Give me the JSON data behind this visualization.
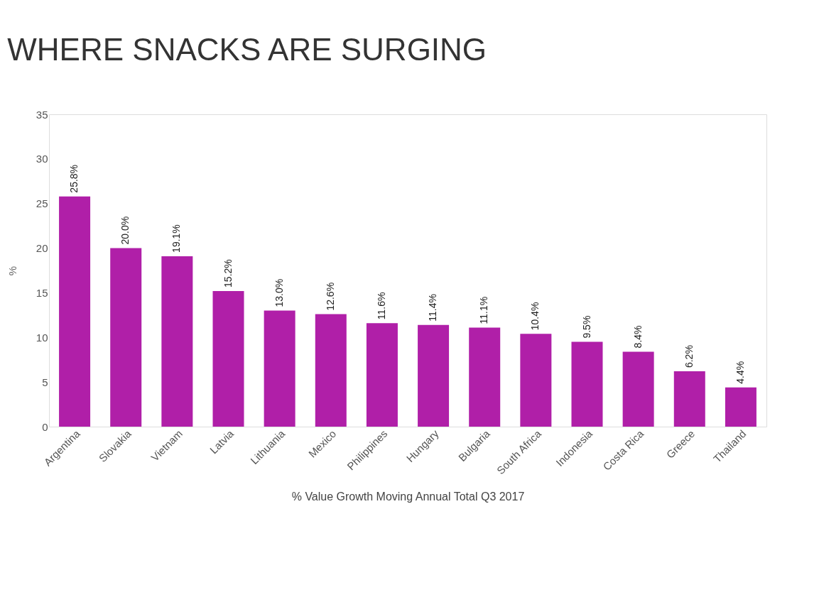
{
  "chart_data": {
    "type": "bar",
    "title": "WHERE SNACKS ARE SURGING",
    "ylabel": "%",
    "xlabel": "% Value Growth Moving Annual Total Q3 2017",
    "categories": [
      "Argentina",
      "Slovakia",
      "Vietnam",
      "Latvia",
      "Lithuania",
      "Mexico",
      "Philippines",
      "Hungary",
      "Bulgaria",
      "South Africa",
      "Indonesia",
      "Costa Rica",
      "Greece",
      "Thailand"
    ],
    "values": [
      25.8,
      20.0,
      19.1,
      15.2,
      13.0,
      12.6,
      11.6,
      11.4,
      11.1,
      10.4,
      9.5,
      8.4,
      6.2,
      4.4
    ],
    "value_labels": [
      "25.8%",
      "20.0%",
      "19.1%",
      "15.2%",
      "13.0%",
      "12.6%",
      "11.6%",
      "11.4%",
      "11.1%",
      "10.4%",
      "9.5%",
      "8.4%",
      "6.2%",
      "4.4%"
    ],
    "color": "#b01fa8",
    "ylim": [
      0,
      35
    ],
    "yticks": [
      0,
      5,
      10,
      15,
      20,
      25,
      30,
      35
    ],
    "grid": false
  }
}
